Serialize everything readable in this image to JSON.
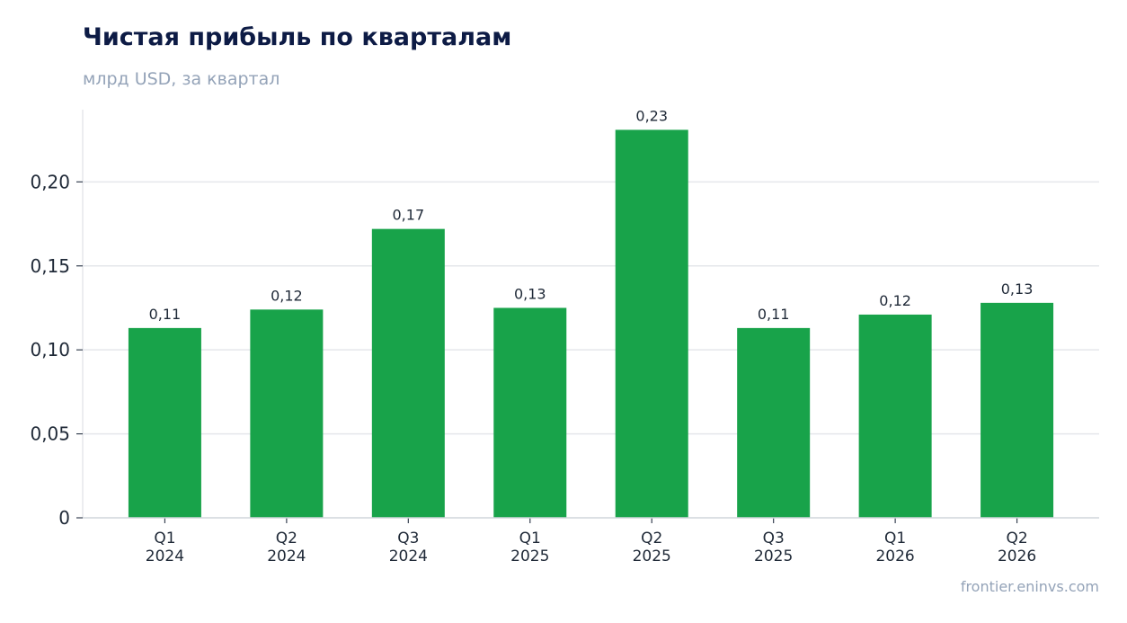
{
  "title": "Чистая прибыль по кварталам",
  "subtitle": "млрд USD, за квартал",
  "source": "frontier.eninvs.com",
  "colors": {
    "bar": "#18a34a",
    "grid": "#e5e7eb",
    "axis": "#d1d5db",
    "title": "#0d1b45",
    "muted": "#94a3b8"
  },
  "chart_data": {
    "type": "bar",
    "title": "Чистая прибыль по кварталам",
    "subtitle": "млрд USD, за квартал",
    "categories": [
      [
        "Q1",
        "2024"
      ],
      [
        "Q2",
        "2024"
      ],
      [
        "Q3",
        "2024"
      ],
      [
        "Q1",
        "2025"
      ],
      [
        "Q2",
        "2025"
      ],
      [
        "Q3",
        "2025"
      ],
      [
        "Q1",
        "2026"
      ],
      [
        "Q2",
        "2026"
      ]
    ],
    "values": [
      0.113,
      0.124,
      0.172,
      0.125,
      0.231,
      0.113,
      0.121,
      0.128
    ],
    "data_labels": [
      "0,11",
      "0,12",
      "0,17",
      "0,13",
      "0,23",
      "0,11",
      "0,12",
      "0,13"
    ],
    "yticks": [
      0,
      0.05,
      0.1,
      0.15,
      0.2
    ],
    "ytick_labels": [
      "0",
      "0,05",
      "0,10",
      "0,15",
      "0,20"
    ],
    "ylim": [
      0,
      0.243
    ],
    "xlabel": "",
    "ylabel": "",
    "grid": true,
    "legend": "none"
  }
}
